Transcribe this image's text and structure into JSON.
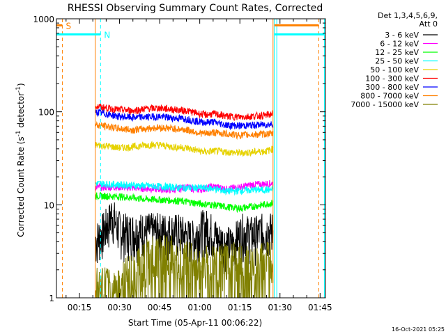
{
  "chart_data": {
    "type": "line",
    "title": "RHESSI Observing Summary Count Rates, Corrected",
    "xlabel": "Start Time (05-Apr-11 00:06:22)",
    "ylabel": "Corrected Count Rate (s",
    "ylabel_sup1": "-1",
    "ylabel_mid": " detector",
    "ylabel_sup2": "-1",
    "ylabel_end": ")",
    "y_scale": "log",
    "ylim": [
      1,
      1000
    ],
    "xlim_minutes": [
      6.4,
      107
    ],
    "x_ticks": [
      {
        "label": "00:15",
        "minutes": 15
      },
      {
        "label": "00:30",
        "minutes": 30
      },
      {
        "label": "00:45",
        "minutes": 45
      },
      {
        "label": "01:00",
        "minutes": 60
      },
      {
        "label": "01:15",
        "minutes": 75
      },
      {
        "label": "01:30",
        "minutes": 90
      },
      {
        "label": "01:45",
        "minutes": 105
      }
    ],
    "y_ticks": [
      {
        "label": "1",
        "value": 1
      },
      {
        "label": "10",
        "value": 10
      },
      {
        "label": "100",
        "value": 100
      },
      {
        "label": "1000",
        "value": 1000
      }
    ],
    "legend_header": [
      "Det 1,3,4,5,6,9,",
      "Att 0"
    ],
    "legend_position": "right",
    "series": [
      {
        "name": "3 - 6 keV",
        "color": "#000000",
        "x": [
          21,
          22,
          24,
          26,
          27,
          28,
          29,
          31,
          33,
          38,
          45,
          52,
          56,
          58,
          60,
          63,
          67,
          72,
          76,
          80,
          84,
          87.4
        ],
        "y": [
          4.2,
          4.5,
          5.4,
          6.5,
          8.2,
          7.2,
          5.9,
          5.3,
          5.2,
          5.3,
          5.3,
          5.2,
          4.5,
          4.4,
          5.6,
          5.8,
          4.2,
          3.7,
          5.2,
          4.8,
          5.3,
          5.4
        ]
      },
      {
        "name": "6 - 12 keV",
        "color": "#ff00ff",
        "x": [
          21,
          30,
          40,
          50,
          55,
          60,
          65,
          70,
          75,
          80,
          87.4
        ],
        "y": [
          15.5,
          15.5,
          15,
          14.5,
          15.5,
          14.5,
          15.8,
          14.8,
          15.5,
          16.5,
          17
        ]
      },
      {
        "name": "12 - 25 keV",
        "color": "#00ff00",
        "x": [
          21,
          30,
          40,
          50,
          55,
          60,
          65,
          70,
          75,
          80,
          87.4
        ],
        "y": [
          12.5,
          12.3,
          11.5,
          11.2,
          10.8,
          10.3,
          10,
          9.5,
          9.2,
          9.6,
          10.5
        ]
      },
      {
        "name": "25 - 50 keV",
        "color": "#00ffff",
        "x": [
          21,
          30,
          40,
          50,
          55,
          60,
          65,
          70,
          75,
          80,
          87.4
        ],
        "y": [
          17,
          16.5,
          16,
          15.5,
          15.2,
          15.3,
          15,
          14,
          14.2,
          14.5,
          14.5
        ]
      },
      {
        "name": "50 - 100 keV",
        "color": "#e6d200",
        "x": [
          21,
          25,
          30,
          35,
          40,
          45,
          50,
          55,
          58,
          62,
          65,
          70,
          75,
          80,
          85,
          87.4
        ],
        "y": [
          44,
          43,
          41,
          42,
          44,
          44,
          42,
          41,
          39,
          37,
          38,
          37,
          36,
          37,
          38,
          40
        ]
      },
      {
        "name": "100 - 300 keV",
        "color": "#ff0000",
        "x": [
          21,
          25,
          30,
          35,
          40,
          45,
          50,
          55,
          58,
          62,
          65,
          70,
          75,
          80,
          85,
          87.4
        ],
        "y": [
          115,
          110,
          105,
          103,
          108,
          110,
          106,
          103,
          98,
          93,
          95,
          90,
          88,
          90,
          92,
          96
        ]
      },
      {
        "name": "300 - 800 keV",
        "color": "#0000ff",
        "x": [
          21,
          25,
          30,
          35,
          40,
          45,
          50,
          55,
          58,
          62,
          65,
          70,
          75,
          80,
          85,
          87.4
        ],
        "y": [
          100,
          95,
          89,
          87,
          88,
          89,
          86,
          84,
          80,
          77,
          78,
          72,
          71,
          72,
          73,
          74
        ]
      },
      {
        "name": "800 - 7000 keV",
        "color": "#ff8000",
        "x": [
          21,
          25,
          30,
          35,
          40,
          45,
          50,
          55,
          58,
          62,
          65,
          70,
          75,
          80,
          85,
          87.4
        ],
        "y": [
          72,
          70,
          66,
          64,
          66,
          68,
          66,
          64,
          61,
          58,
          60,
          58,
          56,
          57,
          58,
          58
        ]
      },
      {
        "name": "7000 - 15000 keV",
        "color": "#808000",
        "x": [
          21,
          24,
          28,
          32,
          36,
          38,
          42,
          46,
          50,
          54,
          56,
          60,
          63,
          66,
          70,
          74,
          78,
          80,
          84,
          87.4
        ],
        "y": [
          1.5,
          1.4,
          1.3,
          1.7,
          2.2,
          2.4,
          3.0,
          3.3,
          3.0,
          2.8,
          2.6,
          2.2,
          2.4,
          2.4,
          2.5,
          2.6,
          2.4,
          2.2,
          2.6,
          2.8
        ]
      }
    ],
    "flag_lines": [
      {
        "label": "S",
        "color": "#ff8000",
        "x_start": 6.4,
        "x_end": 8.6,
        "value": 850,
        "boundary_x": 8.6,
        "boundary_style": "dashed"
      },
      {
        "label": "N",
        "color": "#00ffff",
        "x_start": 6.4,
        "x_end": 22.9,
        "value": 680,
        "boundary_x": 22.9,
        "boundary_style": "dashed"
      },
      {
        "label": "",
        "color": "#ff8000",
        "x_start": 87.9,
        "x_end": 104.5,
        "value": 850,
        "boundary_x": 104.5,
        "boundary_style": "dashed"
      },
      {
        "label": "",
        "color": "#00ffff",
        "x_start": 87.9,
        "x_end": 106.6,
        "value": 680,
        "boundary_x": 106.6,
        "boundary_style": "solid"
      }
    ],
    "data_interval_markers": [
      {
        "minutes": 20.9,
        "color": "#ff8000"
      },
      {
        "minutes": 87.4,
        "color": "#ff8000"
      },
      {
        "minutes": 87.9,
        "color": "#00ffff"
      },
      {
        "minutes": 88.8,
        "color": "#00ffff"
      }
    ],
    "timestamp": "16-Oct-2021 05:25"
  }
}
